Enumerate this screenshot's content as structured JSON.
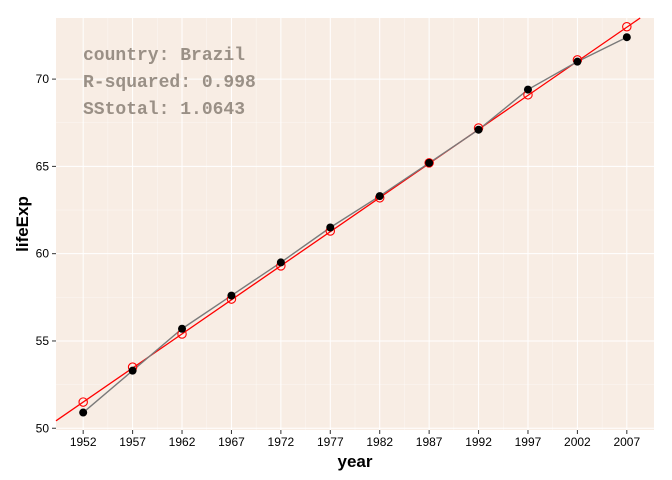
{
  "chart_data": {
    "type": "line",
    "xlabel": "year",
    "ylabel": "lifeExp",
    "x": [
      1952,
      1957,
      1962,
      1967,
      1972,
      1977,
      1982,
      1987,
      1992,
      1997,
      2002,
      2007
    ],
    "xlim": [
      1949.25,
      2009.75
    ],
    "ylim": [
      49.9,
      73.5
    ],
    "x_ticks": [
      "1952",
      "1957",
      "1962",
      "1967",
      "1972",
      "1977",
      "1982",
      "1987",
      "1992",
      "1997",
      "2002",
      "2007"
    ],
    "y_ticks": [
      "50",
      "55",
      "60",
      "65",
      "70"
    ],
    "y_tick_values": [
      50,
      55,
      60,
      65,
      70
    ],
    "grid": true,
    "series": [
      {
        "role": "observed",
        "style": "black filled points joined by grey line",
        "values": [
          50.9,
          53.3,
          55.7,
          57.6,
          59.5,
          61.5,
          63.3,
          65.2,
          67.1,
          69.4,
          71.0,
          72.4
        ]
      },
      {
        "role": "fitted",
        "style": "red open circles with red regression line",
        "values": [
          51.5,
          53.5,
          55.4,
          57.4,
          59.3,
          61.3,
          63.2,
          65.2,
          67.2,
          69.1,
          71.1,
          73.0
        ]
      }
    ],
    "regression_line": {
      "intercept_at_1952": 51.5,
      "slope_per_year": 0.3904
    },
    "annotations": [
      "country: Brazil",
      "R-squared: 0.998",
      "SStotal: 1.0643"
    ]
  },
  "colors": {
    "panel_background": "#f8ede4",
    "grid": "#ffffff",
    "observed_points": "#000000",
    "observed_line": "#7a7a7a",
    "fit": "#ff0000",
    "annotation_text": "#9a9086"
  }
}
